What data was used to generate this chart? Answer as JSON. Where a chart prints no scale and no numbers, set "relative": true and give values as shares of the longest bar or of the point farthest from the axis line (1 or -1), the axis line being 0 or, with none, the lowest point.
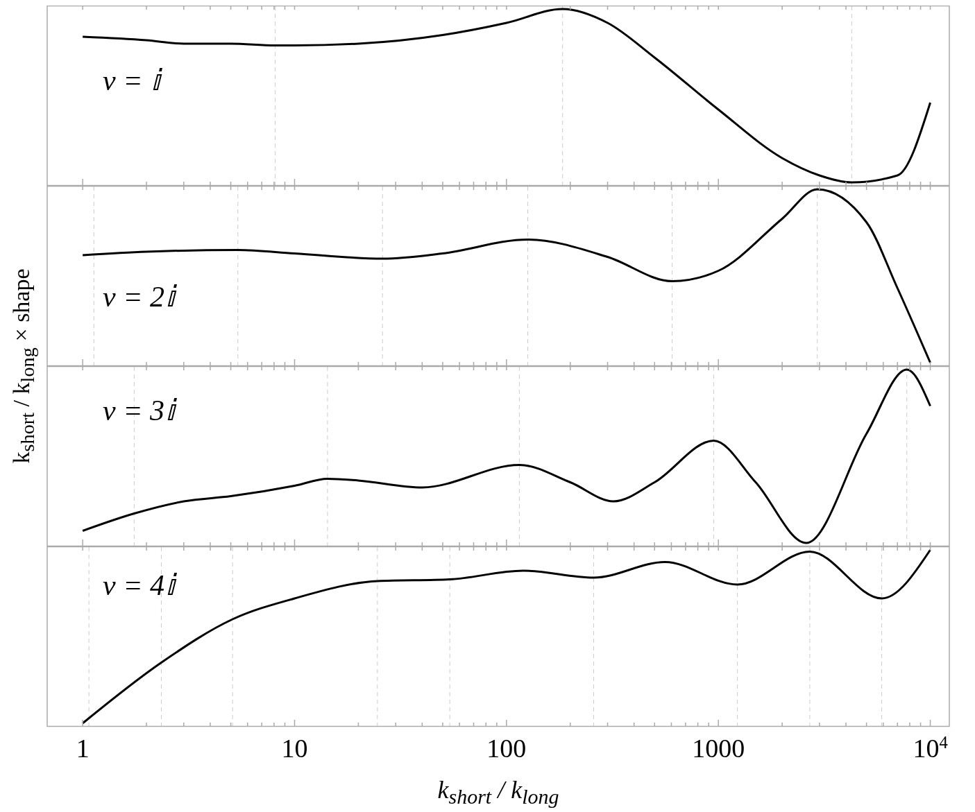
{
  "chart_data": [
    {
      "type": "line",
      "relative": true,
      "ylabel": "k$_{short}$ / k$_{long}$ × shape",
      "annotations": [
        "ν = 𝕚"
      ],
      "tick_labels": false,
      "marker": "none",
      "line_style": "solid",
      "log": "x",
      "xlim": [
        0.68,
        12300
      ],
      "xticks": [
        1,
        {
          "value": 2,
          "label": null
        },
        {
          "value": 3,
          "label": null
        },
        {
          "value": 4,
          "label": null
        },
        {
          "value": 5,
          "label": null
        },
        {
          "value": 6,
          "label": null
        },
        {
          "value": 7,
          "label": null
        },
        {
          "value": 8,
          "label": null
        },
        {
          "value": 9,
          "label": null
        },
        10,
        {
          "value": 20,
          "label": null
        },
        {
          "value": 30,
          "label": null
        },
        {
          "value": 40,
          "label": null
        },
        {
          "value": 50,
          "label": null
        },
        {
          "value": 60,
          "label": null
        },
        {
          "value": 70,
          "label": null
        },
        {
          "value": 80,
          "label": null
        },
        {
          "value": 90,
          "label": null
        },
        100,
        {
          "value": 200,
          "label": null
        },
        {
          "value": 300,
          "label": null
        },
        {
          "value": 400,
          "label": null
        },
        {
          "value": 500,
          "label": null
        },
        {
          "value": 600,
          "label": null
        },
        {
          "value": 700,
          "label": null
        },
        {
          "value": 800,
          "label": null
        },
        {
          "value": 900,
          "label": null
        },
        1000,
        {
          "value": 2000,
          "label": null
        },
        {
          "value": 3000,
          "label": null
        },
        {
          "value": 4000,
          "label": null
        },
        {
          "value": 5000,
          "label": null
        },
        {
          "value": 6000,
          "label": null
        },
        {
          "value": 7000,
          "label": null
        },
        {
          "value": 8000,
          "label": null
        },
        {
          "value": 9000,
          "label": null
        },
        {
          "value": 10000,
          "label": null
        }
      ],
      "ref_lines": [
        {
          "axis": "x",
          "value": 8.1,
          "line_style": "dashed",
          "color": "#cccccc"
        },
        {
          "axis": "x",
          "value": 184,
          "line_style": "dashed",
          "color": "#cccccc"
        },
        {
          "axis": "x",
          "value": 4260,
          "line_style": "dashed",
          "color": "#cccccc"
        }
      ],
      "series": [
        {
          "color": "#000000",
          "x": [
            1,
            2,
            3,
            5,
            8.1,
            10,
            20,
            50,
            100,
            184,
            300,
            500,
            1000,
            2000,
            3000,
            4260,
            7000,
            10000
          ],
          "values": [
            0.84,
            0.82,
            0.8,
            0.8,
            0.79,
            0.79,
            0.8,
            0.85,
            0.92,
            1,
            0.92,
            0.72,
            0.42,
            0.14,
            0.04,
            0,
            0.04,
            0.46
          ]
        }
      ]
    },
    {
      "type": "line",
      "relative": true,
      "annotations": [
        "ν = 2𝕚"
      ],
      "tick_labels": false,
      "marker": "none",
      "line_style": "solid",
      "log": "x",
      "xlim": [
        0.68,
        12300
      ],
      "xticks": [
        1,
        {
          "value": 2,
          "label": null
        },
        {
          "value": 3,
          "label": null
        },
        {
          "value": 4,
          "label": null
        },
        {
          "value": 5,
          "label": null
        },
        {
          "value": 6,
          "label": null
        },
        {
          "value": 7,
          "label": null
        },
        {
          "value": 8,
          "label": null
        },
        {
          "value": 9,
          "label": null
        },
        10,
        {
          "value": 20,
          "label": null
        },
        {
          "value": 30,
          "label": null
        },
        {
          "value": 40,
          "label": null
        },
        {
          "value": 50,
          "label": null
        },
        {
          "value": 60,
          "label": null
        },
        {
          "value": 70,
          "label": null
        },
        {
          "value": 80,
          "label": null
        },
        {
          "value": 90,
          "label": null
        },
        100,
        {
          "value": 200,
          "label": null
        },
        {
          "value": 300,
          "label": null
        },
        {
          "value": 400,
          "label": null
        },
        {
          "value": 500,
          "label": null
        },
        {
          "value": 600,
          "label": null
        },
        {
          "value": 700,
          "label": null
        },
        {
          "value": 800,
          "label": null
        },
        {
          "value": 900,
          "label": null
        },
        1000,
        {
          "value": 2000,
          "label": null
        },
        {
          "value": 3000,
          "label": null
        },
        {
          "value": 4000,
          "label": null
        },
        {
          "value": 5000,
          "label": null
        },
        {
          "value": 6000,
          "label": null
        },
        {
          "value": 7000,
          "label": null
        },
        {
          "value": 8000,
          "label": null
        },
        {
          "value": 9000,
          "label": null
        },
        {
          "value": 10000,
          "label": null
        }
      ],
      "ref_lines": [
        {
          "axis": "x",
          "value": 1.13,
          "line_style": "dashed",
          "color": "#cccccc"
        },
        {
          "axis": "x",
          "value": 5.4,
          "line_style": "dashed",
          "color": "#cccccc"
        },
        {
          "axis": "x",
          "value": 26,
          "line_style": "dashed",
          "color": "#cccccc"
        },
        {
          "axis": "x",
          "value": 126,
          "line_style": "dashed",
          "color": "#cccccc"
        },
        {
          "axis": "x",
          "value": 605,
          "line_style": "dashed",
          "color": "#cccccc"
        },
        {
          "axis": "x",
          "value": 2930,
          "line_style": "dashed",
          "color": "#cccccc"
        }
      ],
      "series": [
        {
          "color": "#000000",
          "x": [
            1,
            2,
            5.4,
            10,
            26,
            50,
            126,
            300,
            605,
            1000,
            2000,
            2930,
            5000,
            7000,
            10000
          ],
          "values": [
            0.62,
            0.64,
            0.65,
            0.63,
            0.6,
            0.63,
            0.71,
            0.61,
            0.47,
            0.53,
            0.83,
            1,
            0.81,
            0.43,
            0
          ]
        }
      ]
    },
    {
      "type": "line",
      "relative": true,
      "annotations": [
        "ν = 3𝕚"
      ],
      "tick_labels": false,
      "marker": "none",
      "line_style": "solid",
      "log": "x",
      "xlim": [
        0.68,
        12300
      ],
      "xticks": [
        1,
        {
          "value": 2,
          "label": null
        },
        {
          "value": 3,
          "label": null
        },
        {
          "value": 4,
          "label": null
        },
        {
          "value": 5,
          "label": null
        },
        {
          "value": 6,
          "label": null
        },
        {
          "value": 7,
          "label": null
        },
        {
          "value": 8,
          "label": null
        },
        {
          "value": 9,
          "label": null
        },
        10,
        {
          "value": 20,
          "label": null
        },
        {
          "value": 30,
          "label": null
        },
        {
          "value": 40,
          "label": null
        },
        {
          "value": 50,
          "label": null
        },
        {
          "value": 60,
          "label": null
        },
        {
          "value": 70,
          "label": null
        },
        {
          "value": 80,
          "label": null
        },
        {
          "value": 90,
          "label": null
        },
        100,
        {
          "value": 200,
          "label": null
        },
        {
          "value": 300,
          "label": null
        },
        {
          "value": 400,
          "label": null
        },
        {
          "value": 500,
          "label": null
        },
        {
          "value": 600,
          "label": null
        },
        {
          "value": 700,
          "label": null
        },
        {
          "value": 800,
          "label": null
        },
        {
          "value": 900,
          "label": null
        },
        1000,
        {
          "value": 2000,
          "label": null
        },
        {
          "value": 3000,
          "label": null
        },
        {
          "value": 4000,
          "label": null
        },
        {
          "value": 5000,
          "label": null
        },
        {
          "value": 6000,
          "label": null
        },
        {
          "value": 7000,
          "label": null
        },
        {
          "value": 8000,
          "label": null
        },
        {
          "value": 9000,
          "label": null
        },
        {
          "value": 10000,
          "label": null
        }
      ],
      "ref_lines": [
        {
          "axis": "x",
          "value": 1.75,
          "line_style": "dashed",
          "color": "#cccccc"
        },
        {
          "axis": "x",
          "value": 14.3,
          "line_style": "dashed",
          "color": "#cccccc"
        },
        {
          "axis": "x",
          "value": 115,
          "line_style": "dashed",
          "color": "#cccccc"
        },
        {
          "axis": "x",
          "value": 950,
          "line_style": "dashed",
          "color": "#cccccc"
        },
        {
          "axis": "x",
          "value": 7750,
          "line_style": "dashed",
          "color": "#cccccc"
        }
      ],
      "series": [
        {
          "color": "#000000",
          "x": [
            1,
            1.75,
            3,
            5,
            10,
            14.3,
            20,
            40,
            115,
            200,
            320,
            500,
            950,
            1500,
            2600,
            5000,
            7750,
            10000
          ],
          "values": [
            0.07,
            0.17,
            0.24,
            0.27,
            0.33,
            0.37,
            0.36,
            0.32,
            0.45,
            0.35,
            0.24,
            0.35,
            0.59,
            0.35,
            0,
            0.63,
            1,
            0.79
          ]
        }
      ]
    },
    {
      "type": "line",
      "relative": true,
      "xlabel": "k$_{short}$ / k$_{long}$",
      "annotations": [
        "ν = 4𝕚"
      ],
      "tick_labels": "x",
      "marker": "none",
      "line_style": "solid",
      "log": "x",
      "xlim": [
        0.68,
        12300
      ],
      "xticks": [
        1,
        {
          "value": 2,
          "label": null
        },
        {
          "value": 3,
          "label": null
        },
        {
          "value": 4,
          "label": null
        },
        {
          "value": 5,
          "label": null
        },
        {
          "value": 6,
          "label": null
        },
        {
          "value": 7,
          "label": null
        },
        {
          "value": 8,
          "label": null
        },
        {
          "value": 9,
          "label": null
        },
        10,
        {
          "value": 20,
          "label": null
        },
        {
          "value": 30,
          "label": null
        },
        {
          "value": 40,
          "label": null
        },
        {
          "value": 50,
          "label": null
        },
        {
          "value": 60,
          "label": null
        },
        {
          "value": 70,
          "label": null
        },
        {
          "value": 80,
          "label": null
        },
        {
          "value": 90,
          "label": null
        },
        100,
        {
          "value": 200,
          "label": null
        },
        {
          "value": 300,
          "label": null
        },
        {
          "value": 400,
          "label": null
        },
        {
          "value": 500,
          "label": null
        },
        {
          "value": 600,
          "label": null
        },
        {
          "value": 700,
          "label": null
        },
        {
          "value": 800,
          "label": null
        },
        {
          "value": 900,
          "label": null
        },
        1000,
        {
          "value": 2000,
          "label": null
        },
        {
          "value": 3000,
          "label": null
        },
        {
          "value": 4000,
          "label": null
        },
        {
          "value": 5000,
          "label": null
        },
        {
          "value": 6000,
          "label": null
        },
        {
          "value": 7000,
          "label": null
        },
        {
          "value": 8000,
          "label": null
        },
        {
          "value": 9000,
          "label": null
        },
        {
          "value": 10000,
          "label": "10$^{4}$"
        }
      ],
      "ref_lines": [
        {
          "axis": "x",
          "value": 1.07,
          "line_style": "dashed",
          "color": "#cccccc"
        },
        {
          "axis": "x",
          "value": 2.35,
          "line_style": "dashed",
          "color": "#cccccc"
        },
        {
          "axis": "x",
          "value": 5.1,
          "line_style": "dashed",
          "color": "#cccccc"
        },
        {
          "axis": "x",
          "value": 24.6,
          "line_style": "dashed",
          "color": "#cccccc"
        },
        {
          "axis": "x",
          "value": 54,
          "line_style": "dashed",
          "color": "#cccccc"
        },
        {
          "axis": "x",
          "value": 258,
          "line_style": "dashed",
          "color": "#cccccc"
        },
        {
          "axis": "x",
          "value": 1230,
          "line_style": "dashed",
          "color": "#cccccc"
        },
        {
          "axis": "x",
          "value": 2700,
          "line_style": "dashed",
          "color": "#cccccc"
        },
        {
          "axis": "x",
          "value": 5900,
          "line_style": "dashed",
          "color": "#cccccc"
        }
      ],
      "series": [
        {
          "color": "#000000",
          "x": [
            1,
            2.35,
            5.1,
            10,
            24.6,
            54,
            120,
            258,
            560,
            1230,
            2700,
            5900,
            10000
          ],
          "values": [
            0,
            0.35,
            0.6,
            0.72,
            0.82,
            0.83,
            0.88,
            0.84,
            0.93,
            0.8,
            0.99,
            0.72,
            1
          ]
        }
      ]
    }
  ]
}
